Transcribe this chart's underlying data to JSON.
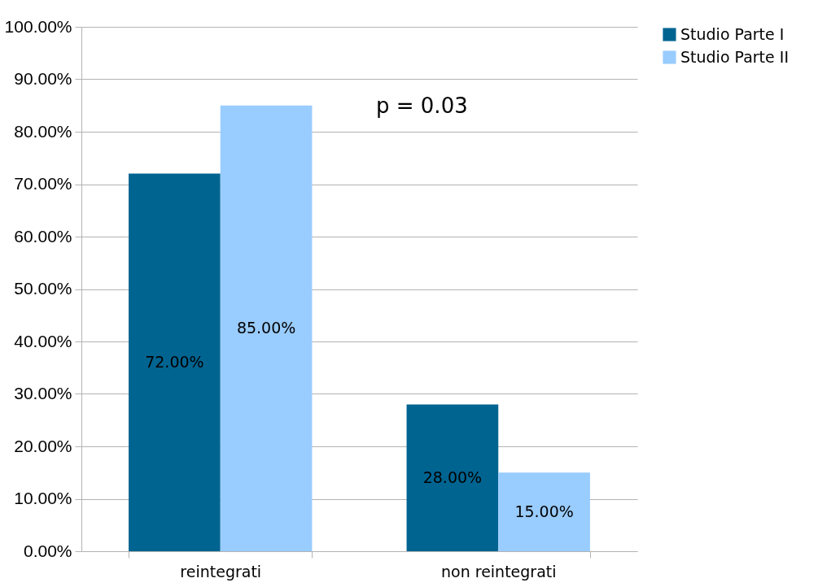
{
  "chart_data": {
    "type": "bar",
    "categories": [
      "reintegrati",
      "non reintegrati"
    ],
    "series": [
      {
        "name": "Studio Parte I",
        "color": "#006491",
        "values": [
          72,
          28
        ],
        "value_labels": [
          "72.00%",
          "28.00%"
        ]
      },
      {
        "name": "Studio Parte II",
        "color": "#99ccff",
        "values": [
          85,
          15
        ],
        "value_labels": [
          "85.00%",
          "15.00%"
        ]
      }
    ],
    "ylim": [
      0,
      100
    ],
    "yticks": [
      {
        "value": 0,
        "label": "0.00%"
      },
      {
        "value": 10,
        "label": "10.00%"
      },
      {
        "value": 20,
        "label": "20.00%"
      },
      {
        "value": 30,
        "label": "30.00%"
      },
      {
        "value": 40,
        "label": "40.00%"
      },
      {
        "value": 50,
        "label": "50.00%"
      },
      {
        "value": 60,
        "label": "60.00%"
      },
      {
        "value": 70,
        "label": "70.00%"
      },
      {
        "value": 80,
        "label": "80.00%"
      },
      {
        "value": 90,
        "label": "90.00%"
      },
      {
        "value": 100,
        "label": "100.00%"
      }
    ],
    "grid": "y",
    "legend": "right",
    "annotations": [
      "p = 0.03"
    ]
  }
}
